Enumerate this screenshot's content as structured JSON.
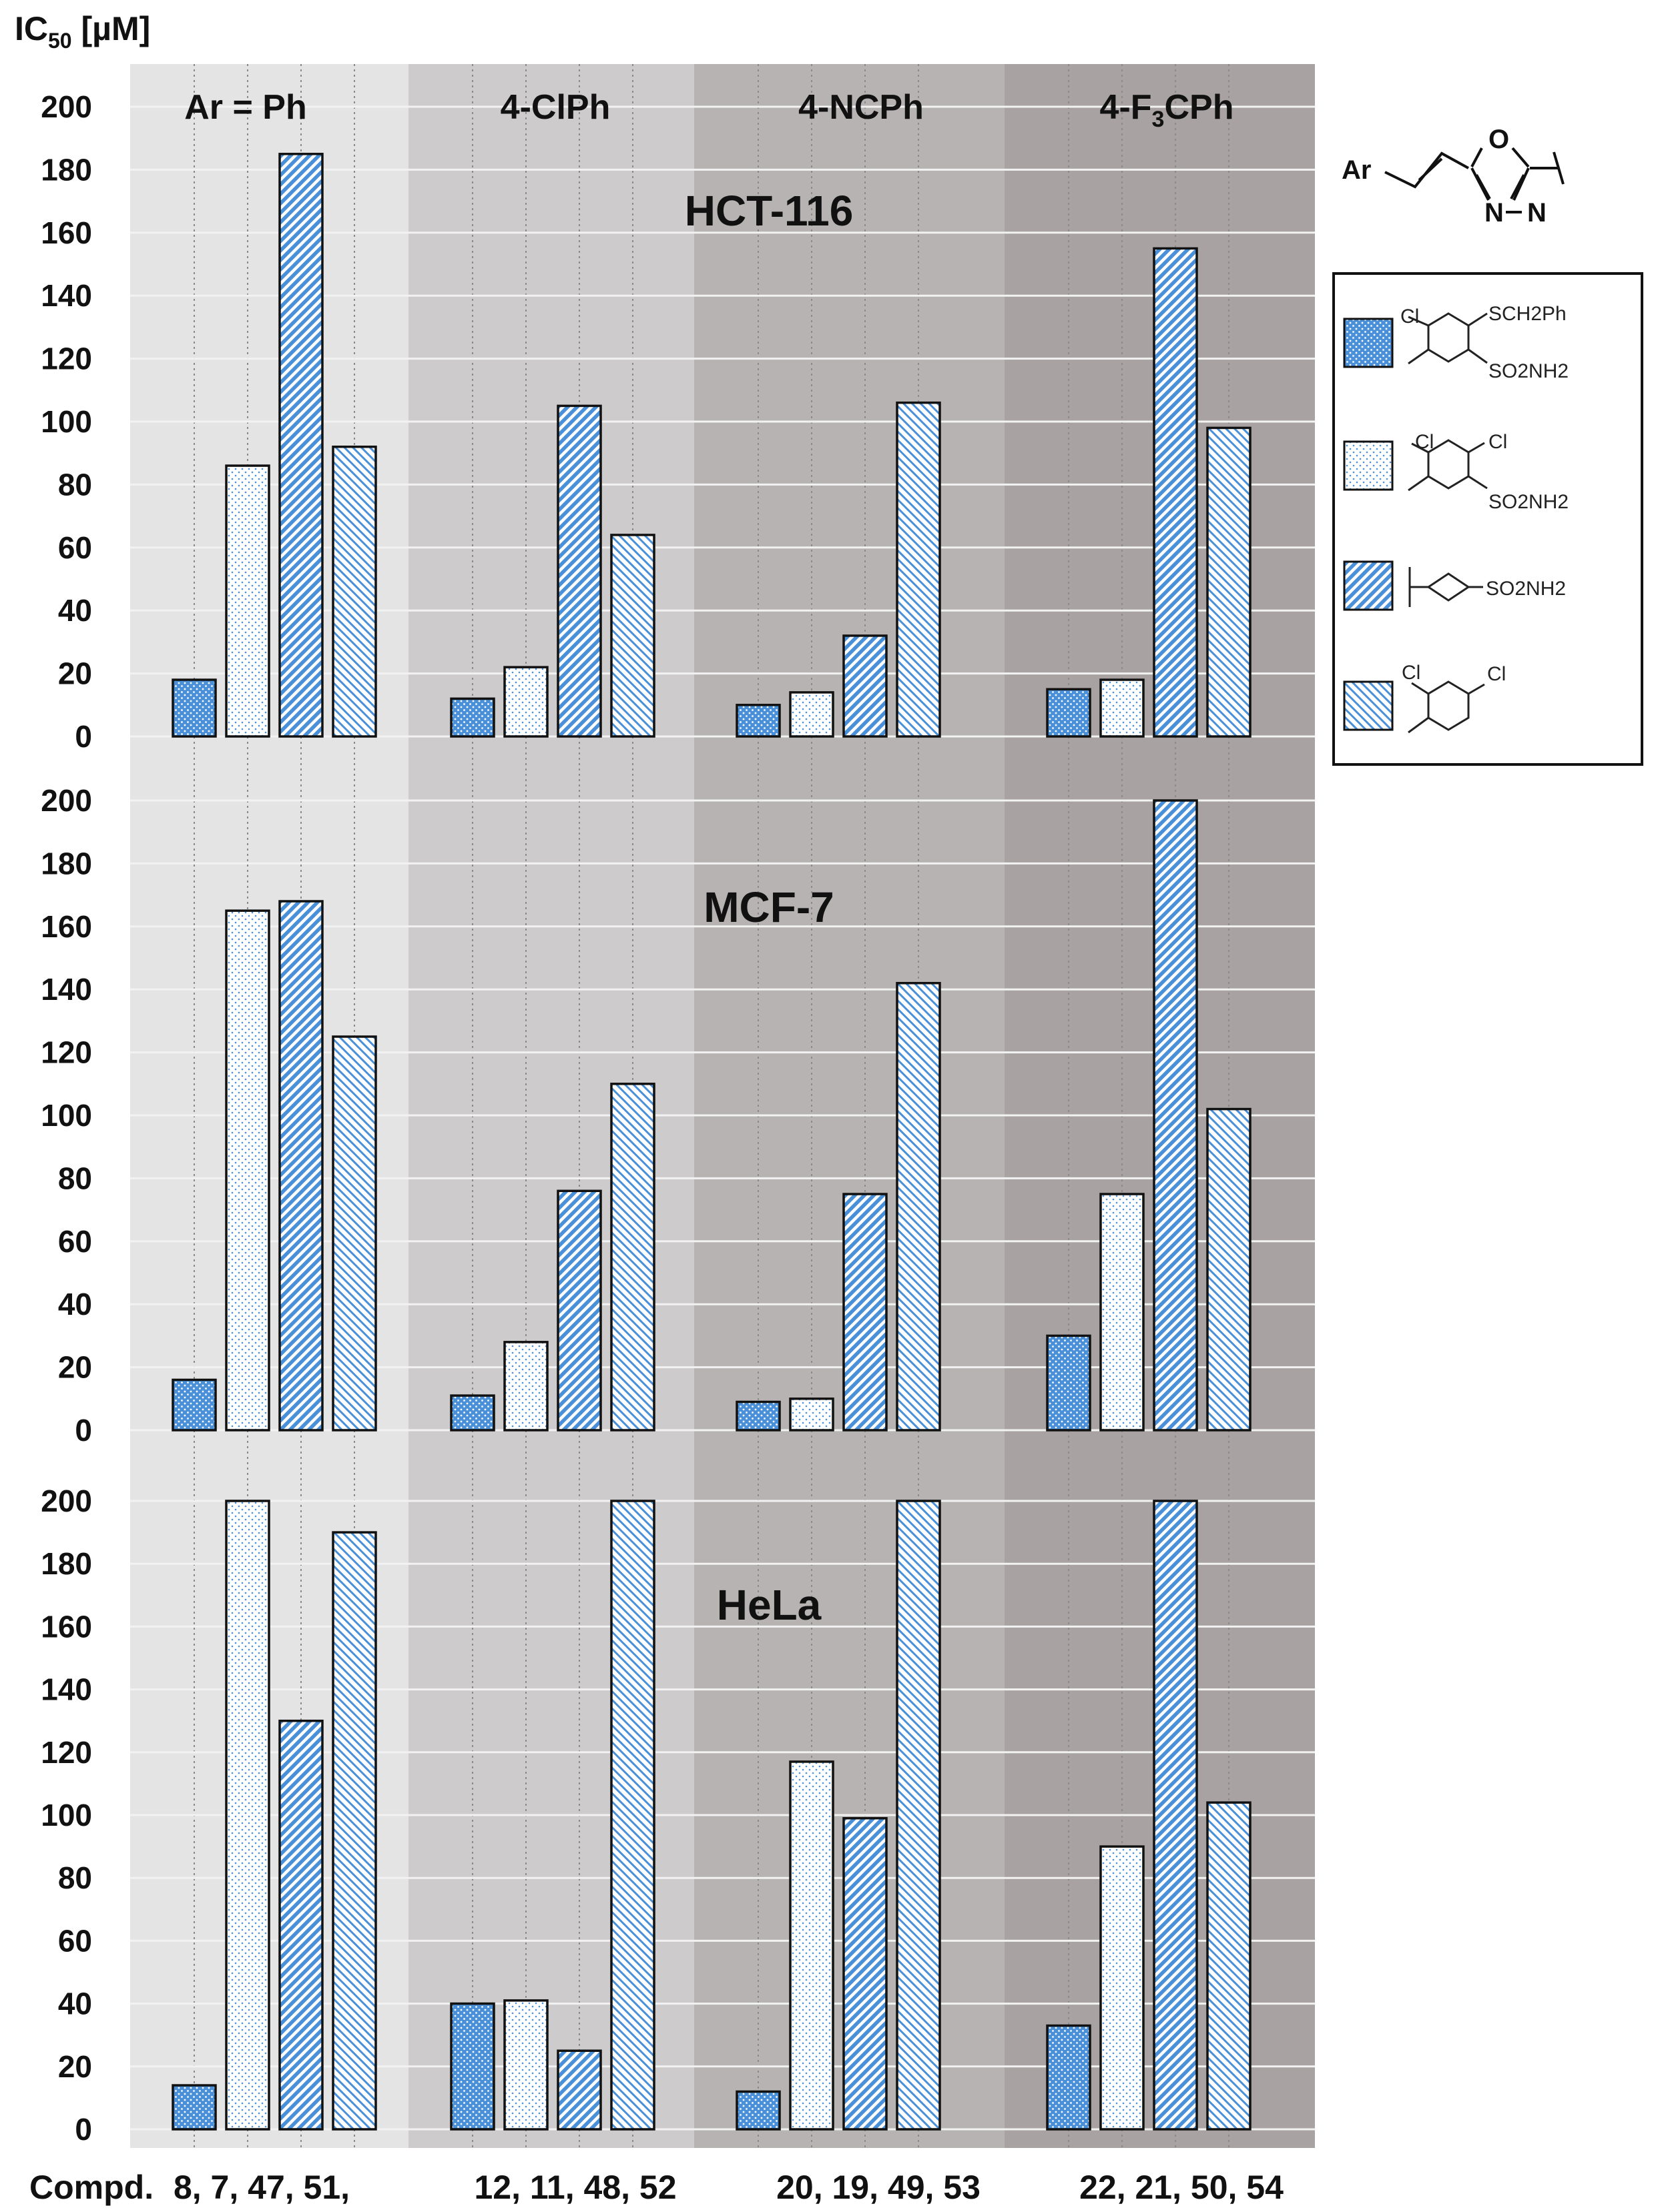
{
  "chart_data": {
    "type": "bar",
    "ylabel": "IC",
    "ylabel_sub": "50",
    "ylabel_unit": " [µM]",
    "ylim": [
      0,
      200
    ],
    "yticks": [
      "0",
      "20",
      "40",
      "60",
      "80",
      "100",
      "120",
      "140",
      "160",
      "180",
      "200"
    ],
    "x_prefix": "Compd.",
    "groups": [
      {
        "label": "Ar = Ph",
        "compounds": "8, 7, 47, 51,"
      },
      {
        "label": "4-ClPh",
        "compounds": "12, 11, 48, 52"
      },
      {
        "label": "4-NCPh",
        "compounds": "20, 19, 49, 53"
      },
      {
        "label": "4-F3CPh",
        "label_main": "4-F",
        "label_sub": "3",
        "label_tail": "CPh",
        "compounds": "22, 21, 50, 54"
      }
    ],
    "group_shades": [
      "#e4e4e4",
      "#cdcbcb",
      "#b7b3b3",
      "#a8a2a2"
    ],
    "bar_color": "#4a90d9",
    "panels": [
      {
        "title": "HCT-116",
        "values": [
          [
            18,
            86,
            185,
            92
          ],
          [
            12,
            22,
            105,
            64
          ],
          [
            10,
            14,
            32,
            106
          ],
          [
            15,
            18,
            155,
            98
          ]
        ]
      },
      {
        "title": "MCF-7",
        "values": [
          [
            16,
            165,
            168,
            125
          ],
          [
            11,
            28,
            76,
            110
          ],
          [
            9,
            10,
            75,
            142
          ],
          [
            30,
            75,
            200,
            102
          ]
        ]
      },
      {
        "title": "HeLa",
        "values": [
          [
            14,
            200,
            130,
            190
          ],
          [
            40,
            41,
            25,
            200
          ],
          [
            12,
            117,
            99,
            200
          ],
          [
            33,
            90,
            200,
            104
          ]
        ]
      }
    ],
    "legend": [
      {
        "pattern": "dots-dense",
        "labels": [
          "Cl",
          "SCH2Ph",
          "SO2NH2"
        ]
      },
      {
        "pattern": "dots-sparse",
        "labels": [
          "Cl",
          "Cl",
          "SO2NH2"
        ]
      },
      {
        "pattern": "diag-dense",
        "labels": [
          "SO2NH2"
        ]
      },
      {
        "pattern": "diag-back",
        "labels": [
          "Cl",
          "Cl"
        ]
      }
    ],
    "scaffold": {
      "labels": [
        "Ar",
        "O",
        "N",
        "N"
      ]
    }
  }
}
